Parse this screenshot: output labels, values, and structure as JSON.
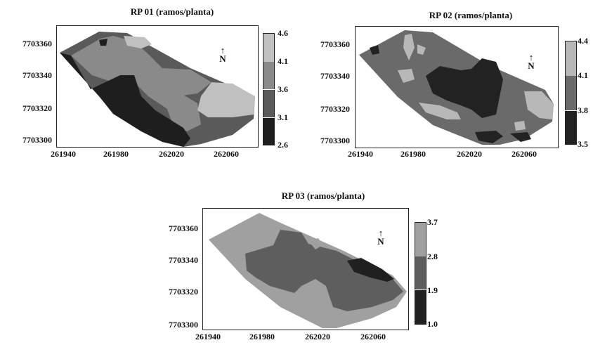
{
  "maps": [
    {
      "title": "RP 01 (ramos/planta)",
      "y_ticks": [
        "7703360",
        "7703340",
        "7703320",
        "7703300"
      ],
      "x_ticks": [
        "261940",
        "261980",
        "262020",
        "262060"
      ],
      "legend": [
        "4.6",
        "4.1",
        "3.6",
        "3.1",
        "2.6"
      ],
      "north": "N",
      "colors": [
        "#c0c0c0",
        "#8a8a8a",
        "#5a5a5a",
        "#1e1e1e"
      ]
    },
    {
      "title": "RP 02 (ramos/planta)",
      "y_ticks": [
        "7703360",
        "7703340",
        "7703320",
        "7703300"
      ],
      "x_ticks": [
        "261940",
        "261980",
        "262020",
        "262060"
      ],
      "legend": [
        "4.4",
        "4.1",
        "3.8",
        "3.5"
      ],
      "north": "N",
      "colors": [
        "#b8b8b8",
        "#6a6a6a",
        "#222222"
      ]
    },
    {
      "title": "RP 03 (ramos/planta)",
      "y_ticks": [
        "7703360",
        "7703340",
        "7703320",
        "7703300"
      ],
      "x_ticks": [
        "261940",
        "261980",
        "262020",
        "262060"
      ],
      "legend": [
        "3.7",
        "2.8",
        "1.9",
        "1.0"
      ],
      "north": "N",
      "colors": [
        "#a0a0a0",
        "#5e5e5e",
        "#202020"
      ]
    }
  ]
}
